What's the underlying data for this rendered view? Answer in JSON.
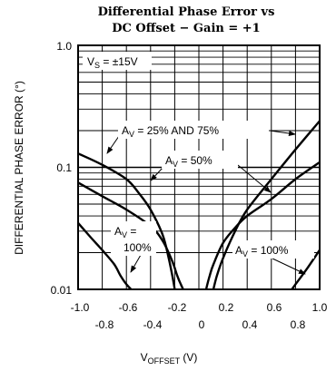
{
  "chart_data": {
    "type": "line",
    "title_line1": "Differential Phase Error vs",
    "title_line2": "DC Offset − Gain = +1",
    "xlabel_main": "V",
    "xlabel_sub": "OFFSET",
    "xlabel_unit": " (V)",
    "ylabel": "DIFFERENTIAL PHASE ERROR (°)",
    "xlim": [
      -1.0,
      1.0
    ],
    "ylim": [
      0.01,
      1.0
    ],
    "yscale": "log",
    "grid": true,
    "x_ticks_top_row": [
      "-1.0",
      "-0.6",
      "-0.2",
      "0.2",
      "0.6",
      "1.0"
    ],
    "x_ticks_bottom_row": [
      "-0.8",
      "-0.4",
      "0",
      "0.4",
      "0.8"
    ],
    "y_ticks": [
      "1.0",
      "0.1",
      "0.01"
    ],
    "annotations": {
      "supply_main": "V",
      "supply_sub": "S",
      "supply_rest": " = ±15V",
      "av25_main": "A",
      "av25_sub": "V",
      "av25_rest": " = 25% AND 75%",
      "av50_main": "A",
      "av50_sub": "V",
      "av50_rest": " = 50%",
      "av100l_main": "A",
      "av100l_sub": "V",
      "av100l_rest": " =",
      "av100l_line2": "100%",
      "av100r_main": "A",
      "av100r_sub": "V",
      "av100r_rest": " = 100%"
    },
    "series": [
      {
        "x": [
          -1.0,
          -0.8,
          -0.6,
          -0.5,
          -0.4,
          -0.3,
          -0.25,
          -0.22,
          -0.2
        ],
        "y": [
          0.13,
          0.105,
          0.08,
          0.062,
          0.045,
          0.028,
          0.018,
          0.013,
          0.01
        ]
      },
      {
        "x": [
          -1.0,
          -0.8,
          -0.6,
          -0.4,
          -0.3,
          -0.22,
          -0.18,
          -0.15,
          -0.13
        ],
        "y": [
          0.075,
          0.058,
          0.045,
          0.033,
          0.025,
          0.017,
          0.013,
          0.011,
          0.01
        ]
      },
      {
        "x": [
          -1.0,
          -0.9,
          -0.8,
          -0.7,
          -0.65,
          -0.6,
          -0.56
        ],
        "y": [
          0.035,
          0.027,
          0.021,
          0.016,
          0.013,
          0.011,
          0.01
        ]
      },
      {
        "x": [
          0.12,
          0.15,
          0.2,
          0.3,
          0.4,
          0.6,
          0.8,
          1.0
        ],
        "y": [
          0.01,
          0.013,
          0.018,
          0.03,
          0.045,
          0.08,
          0.14,
          0.24
        ]
      },
      {
        "x": [
          0.06,
          0.09,
          0.12,
          0.2,
          0.3,
          0.4,
          0.6,
          0.8,
          1.0
        ],
        "y": [
          0.01,
          0.013,
          0.016,
          0.024,
          0.032,
          0.04,
          0.055,
          0.08,
          0.11
        ]
      },
      {
        "x": [
          0.77,
          0.8,
          0.9,
          1.0
        ],
        "y": [
          0.01,
          0.011,
          0.015,
          0.021
        ]
      }
    ]
  }
}
